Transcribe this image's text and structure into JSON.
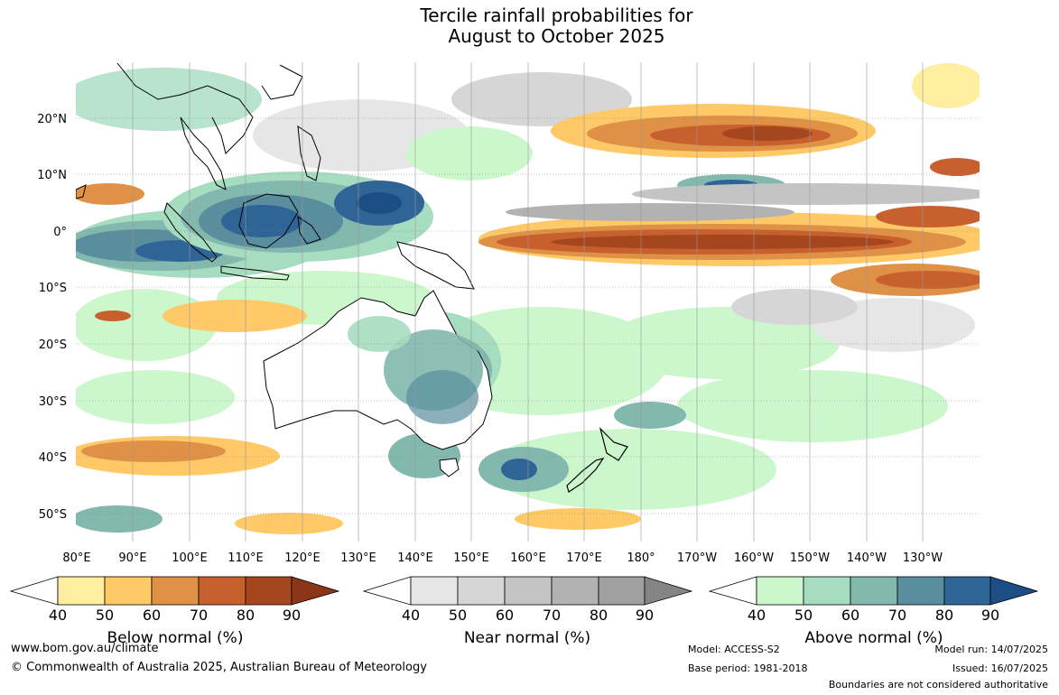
{
  "title_line1": "Tercile rainfall probabilities for",
  "title_line2": "August to October 2025",
  "lat_labels": [
    "20°N",
    "10°N",
    "0°",
    "10°S",
    "20°S",
    "30°S",
    "40°S",
    "50°S"
  ],
  "lon_labels": [
    "80°E",
    "90°E",
    "100°E",
    "110°E",
    "120°E",
    "130°E",
    "140°E",
    "150°E",
    "160°E",
    "170°E",
    "180°",
    "170°W",
    "160°W",
    "150°W",
    "140°W",
    "130°W"
  ],
  "legends": [
    {
      "label": "Below normal (%)",
      "ticks": [
        "40",
        "50",
        "60",
        "70",
        "80",
        "90"
      ],
      "colors": [
        "#ffeda0",
        "#fec966",
        "#df9146",
        "#c8602e",
        "#a6461f",
        "#8c3518"
      ]
    },
    {
      "label": "Near normal (%)",
      "ticks": [
        "40",
        "50",
        "60",
        "70",
        "80",
        "90"
      ],
      "colors": [
        "#e6e6e6",
        "#d6d6d6",
        "#c4c4c4",
        "#b2b2b2",
        "#a0a0a0",
        "#858585"
      ]
    },
    {
      "label": "Above normal (%)",
      "ticks": [
        "40",
        "50",
        "60",
        "70",
        "80",
        "90"
      ],
      "colors": [
        "#ccf7cc",
        "#a6dcbf",
        "#82b8ae",
        "#5a8e9f",
        "#2f6496",
        "#1b4e85"
      ]
    }
  ],
  "footer": {
    "url": "www.bom.gov.au/climate",
    "copyright": "© Commonwealth of Australia 2025, Australian Bureau of Meteorology",
    "model": "Model: ACCESS-S2",
    "base_period": "Base period: 1981-2018",
    "model_run": "Model run: 14/07/2025",
    "issued": "Issued: 16/07/2025",
    "disclaimer": "Boundaries are not considered authoritative"
  }
}
